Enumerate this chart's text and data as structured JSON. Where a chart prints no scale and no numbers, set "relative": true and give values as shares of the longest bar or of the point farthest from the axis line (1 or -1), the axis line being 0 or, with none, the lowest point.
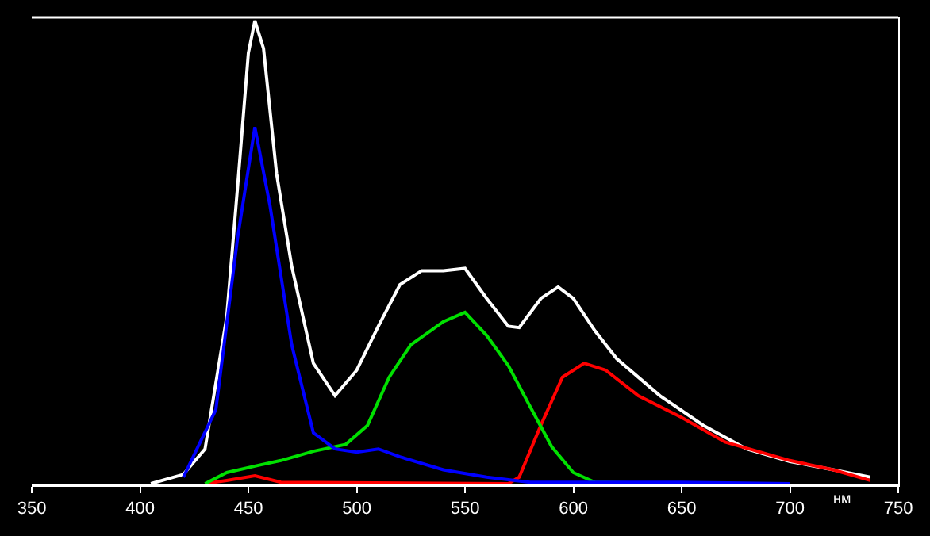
{
  "chart_data": {
    "type": "line",
    "relative": true,
    "xlabel": "нм",
    "xlim": [
      350,
      750
    ],
    "xticks": [
      350,
      400,
      450,
      500,
      550,
      600,
      650,
      700,
      750
    ],
    "marker": "none",
    "line_style": "solid",
    "series": [
      {
        "color": "#ffffff",
        "x": [
          405,
          420,
          430,
          440,
          445,
          450,
          453,
          457,
          463,
          470,
          480,
          490,
          500,
          510,
          520,
          530,
          540,
          550,
          560,
          570,
          575,
          585,
          593,
          600,
          610,
          620,
          640,
          660,
          680,
          700,
          720,
          737
        ],
        "values": [
          0,
          0.02,
          0.075,
          0.36,
          0.64,
          0.93,
          1,
          0.94,
          0.67,
          0.47,
          0.26,
          0.19,
          0.245,
          0.34,
          0.43,
          0.46,
          0.46,
          0.465,
          0.4,
          0.34,
          0.337,
          0.4,
          0.425,
          0.4,
          0.33,
          0.27,
          0.19,
          0.126,
          0.075,
          0.048,
          0.03,
          0.014
        ]
      },
      {
        "color": "#ff0000",
        "x": [
          430,
          440,
          453,
          465,
          570,
          575,
          585,
          595,
          605,
          615,
          630,
          650,
          670,
          700,
          720,
          737
        ],
        "values": [
          0,
          0.007,
          0.017,
          0.003,
          0,
          0.014,
          0.126,
          0.23,
          0.26,
          0.245,
          0.19,
          0.143,
          0.09,
          0.05,
          0.03,
          0.007
        ]
      },
      {
        "color": "#00e000",
        "x": [
          430,
          440,
          455,
          465,
          480,
          495,
          505,
          515,
          525,
          540,
          550,
          560,
          570,
          580,
          590,
          600,
          610,
          650
        ],
        "values": [
          0,
          0.024,
          0.04,
          0.05,
          0.07,
          0.085,
          0.126,
          0.23,
          0.3,
          0.35,
          0.37,
          0.32,
          0.255,
          0.167,
          0.08,
          0.024,
          0.003,
          0
        ]
      },
      {
        "color": "#0000ff",
        "x": [
          420,
          435,
          445,
          453,
          460,
          470,
          480,
          490,
          500,
          510,
          520,
          540,
          560,
          580,
          600,
          650,
          700
        ],
        "values": [
          0.014,
          0.16,
          0.53,
          0.77,
          0.6,
          0.3,
          0.11,
          0.075,
          0.068,
          0.075,
          0.058,
          0.03,
          0.014,
          0.003,
          0.003,
          0.003,
          0
        ]
      }
    ]
  }
}
